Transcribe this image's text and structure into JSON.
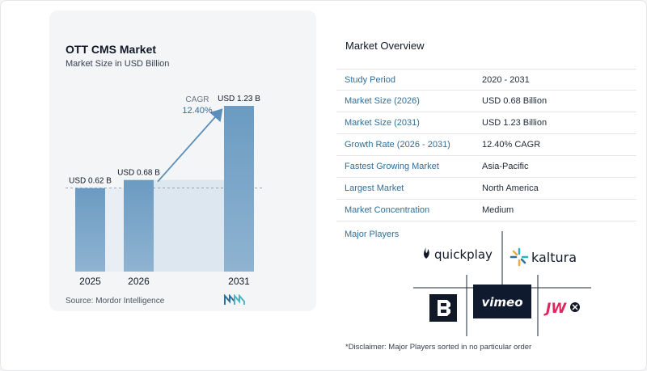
{
  "chart_title": "OTT CMS Market",
  "chart_subtitle": "Market Size in USD Billion",
  "source": "Source:  Mordor Intelligence",
  "cagr_label": "CAGR",
  "cagr_value": "12.40%",
  "colors": {
    "bar_top": "#6b9bc2",
    "bar_bottom": "#8fb3d1",
    "arrow": "#5b8fb9",
    "accent": "#2f6f9b"
  },
  "chart_data": {
    "type": "bar",
    "categories": [
      "2025",
      "2026",
      "2031"
    ],
    "values": [
      0.62,
      0.68,
      1.23
    ],
    "data_labels": [
      "USD 0.62 B",
      "USD 0.68 B",
      "USD 1.23 B"
    ],
    "ylabel": "",
    "ylim": [
      0,
      1.23
    ],
    "grid": false
  },
  "overview": {
    "title": "Market Overview",
    "rows": [
      {
        "label": "Study Period",
        "value": "2020 - 2031"
      },
      {
        "label": "Market Size (2026)",
        "value": "USD 0.68 Billion"
      },
      {
        "label": "Market Size (2031)",
        "value": "USD 1.23 Billion"
      },
      {
        "label": "Growth Rate (2026 - 2031)",
        "value": "12.40% CAGR"
      },
      {
        "label": "Fastest Growing Market",
        "value": "Asia-Pacific"
      },
      {
        "label": "Largest Market",
        "value": "North America"
      },
      {
        "label": "Market Concentration",
        "value": "Medium"
      }
    ],
    "players_title": "Major Players",
    "players": [
      "quickplay",
      "kaltura",
      "vimeo",
      "JW"
    ],
    "player_icons": [
      "brightcove-icon",
      "jwplayer-icon"
    ]
  },
  "disclaimer": "*Disclaimer: Major Players sorted in no particular order"
}
